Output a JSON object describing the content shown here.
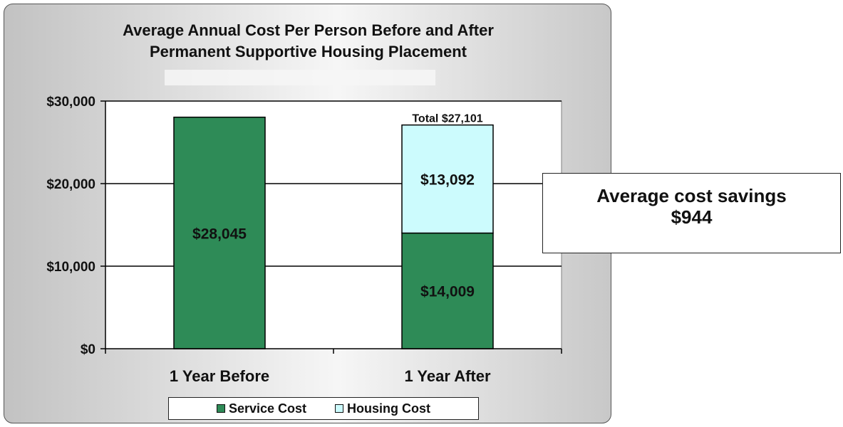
{
  "chart_data": {
    "type": "bar",
    "stacked": true,
    "title": "Average Annual Cost Per Person Before and After Permanent Supportive Housing Placement",
    "title_lines": [
      "Average Annual Cost Per Person Before and After",
      "Permanent Supportive Housing Placement"
    ],
    "categories": [
      "1 Year Before",
      "1 Year After"
    ],
    "series": [
      {
        "name": "Service Cost",
        "values": [
          28045,
          14009
        ],
        "labels": [
          "$28,045",
          "$14,009"
        ],
        "color": "#2e8b57"
      },
      {
        "name": "Housing Cost",
        "values": [
          0,
          13092
        ],
        "labels": [
          "",
          "$13,092"
        ],
        "color": "#ccfbfd"
      }
    ],
    "total_labels": [
      "",
      "Total $27,101"
    ],
    "ylim": [
      0,
      30000
    ],
    "yticks": [
      0,
      10000,
      20000,
      30000
    ],
    "ytick_labels": [
      "$0",
      "$10,000",
      "$20,000",
      "$30,000"
    ],
    "xlabel": "",
    "ylabel": "",
    "grid": true,
    "legend_position": "bottom"
  },
  "callout": {
    "line1": "Average cost savings",
    "line2": "$944"
  },
  "colors": {
    "service": "#2e8b57",
    "housing": "#ccfbfd",
    "gridline": "#000000"
  }
}
